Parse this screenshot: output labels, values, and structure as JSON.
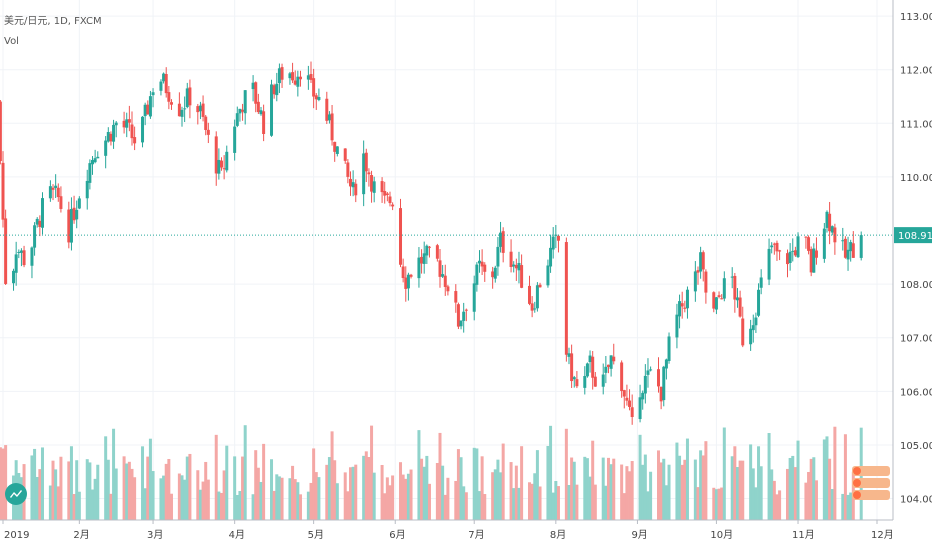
{
  "header": {
    "symbol_line": "美元/日元, 1D, FXCM",
    "indicator": "Vol"
  },
  "current_price": "108.914",
  "colors": {
    "up": "#26a69a",
    "down": "#ef5350",
    "up_vol": "#8fd3cb",
    "down_vol": "#f4a7a5",
    "grid": "#f0f3f7"
  },
  "chart_data": {
    "type": "candlestick",
    "title": "",
    "y_ticks": [
      "113.000",
      "112.000",
      "111.000",
      "110.000",
      "108.000",
      "107.000",
      "106.000",
      "105.000",
      "104.000"
    ],
    "ylim": [
      103.6,
      113.3
    ],
    "x_ticks": [
      {
        "label": "2019",
        "day": 3
      },
      {
        "label": "2月",
        "day": 32
      },
      {
        "label": "3月",
        "day": 60
      },
      {
        "label": "4月",
        "day": 91
      },
      {
        "label": "5月",
        "day": 121
      },
      {
        "label": "6月",
        "day": 152
      },
      {
        "label": "7月",
        "day": 182
      },
      {
        "label": "8月",
        "day": 213
      },
      {
        "label": "9月",
        "day": 244
      },
      {
        "label": "10月",
        "day": 274
      },
      {
        "label": "11月",
        "day": 305
      },
      {
        "label": "12月",
        "day": 335
      }
    ],
    "last_value": 108.914,
    "close_path": [
      {
        "day": 1,
        "close": 111.4
      },
      {
        "day": 4,
        "close": 108.1
      },
      {
        "day": 5,
        "close": 107.7
      },
      {
        "day": 8,
        "close": 108.7
      },
      {
        "day": 12,
        "close": 108.4
      },
      {
        "day": 16,
        "close": 109.1
      },
      {
        "day": 20,
        "close": 109.7
      },
      {
        "day": 24,
        "close": 109.6
      },
      {
        "day": 28,
        "close": 109.0
      },
      {
        "day": 33,
        "close": 109.9
      },
      {
        "day": 38,
        "close": 110.5
      },
      {
        "day": 42,
        "close": 110.7
      },
      {
        "day": 46,
        "close": 111.0
      },
      {
        "day": 50,
        "close": 110.9
      },
      {
        "day": 54,
        "close": 110.6
      },
      {
        "day": 58,
        "close": 111.3
      },
      {
        "day": 60,
        "close": 111.7
      },
      {
        "day": 62,
        "close": 111.9
      },
      {
        "day": 66,
        "close": 111.6
      },
      {
        "day": 70,
        "close": 111.3
      },
      {
        "day": 74,
        "close": 111.5
      },
      {
        "day": 78,
        "close": 111.2
      },
      {
        "day": 82,
        "close": 110.5
      },
      {
        "day": 86,
        "close": 110.0
      },
      {
        "day": 90,
        "close": 110.9
      },
      {
        "day": 94,
        "close": 111.4
      },
      {
        "day": 98,
        "close": 111.6
      },
      {
        "day": 102,
        "close": 111.0
      },
      {
        "day": 106,
        "close": 111.7
      },
      {
        "day": 110,
        "close": 112.0
      },
      {
        "day": 114,
        "close": 111.9
      },
      {
        "day": 117,
        "close": 112.1
      },
      {
        "day": 120,
        "close": 111.6
      },
      {
        "day": 124,
        "close": 111.4
      },
      {
        "day": 128,
        "close": 110.8
      },
      {
        "day": 132,
        "close": 110.2
      },
      {
        "day": 136,
        "close": 109.7
      },
      {
        "day": 140,
        "close": 110.4
      },
      {
        "day": 144,
        "close": 109.8
      },
      {
        "day": 148,
        "close": 109.5
      },
      {
        "day": 151,
        "close": 109.6
      },
      {
        "day": 153,
        "close": 108.6
      },
      {
        "day": 156,
        "close": 108.1
      },
      {
        "day": 160,
        "close": 108.4
      },
      {
        "day": 164,
        "close": 108.5
      },
      {
        "day": 168,
        "close": 108.4
      },
      {
        "day": 172,
        "close": 108.0
      },
      {
        "day": 176,
        "close": 107.3
      },
      {
        "day": 180,
        "close": 107.8
      },
      {
        "day": 184,
        "close": 108.3
      },
      {
        "day": 188,
        "close": 108.0
      },
      {
        "day": 192,
        "close": 108.8
      },
      {
        "day": 196,
        "close": 108.5
      },
      {
        "day": 200,
        "close": 108.1
      },
      {
        "day": 204,
        "close": 107.6
      },
      {
        "day": 208,
        "close": 108.2
      },
      {
        "day": 212,
        "close": 108.7
      },
      {
        "day": 214,
        "close": 108.8
      },
      {
        "day": 216,
        "close": 107.0
      },
      {
        "day": 218,
        "close": 106.5
      },
      {
        "day": 222,
        "close": 105.9
      },
      {
        "day": 226,
        "close": 106.5
      },
      {
        "day": 230,
        "close": 106.0
      },
      {
        "day": 234,
        "close": 106.6
      },
      {
        "day": 238,
        "close": 106.2
      },
      {
        "day": 242,
        "close": 105.3
      },
      {
        "day": 245,
        "close": 106.1
      },
      {
        "day": 249,
        "close": 106.3
      },
      {
        "day": 253,
        "close": 106.0
      },
      {
        "day": 257,
        "close": 107.1
      },
      {
        "day": 261,
        "close": 107.6
      },
      {
        "day": 265,
        "close": 108.0
      },
      {
        "day": 268,
        "close": 108.4
      },
      {
        "day": 272,
        "close": 107.3
      },
      {
        "day": 276,
        "close": 107.9
      },
      {
        "day": 280,
        "close": 108.1
      },
      {
        "day": 284,
        "close": 107.0
      },
      {
        "day": 288,
        "close": 107.4
      },
      {
        "day": 291,
        "close": 108.0
      },
      {
        "day": 295,
        "close": 108.7
      },
      {
        "day": 299,
        "close": 108.4
      },
      {
        "day": 303,
        "close": 108.6
      },
      {
        "day": 307,
        "close": 108.9
      },
      {
        "day": 310,
        "close": 108.3
      },
      {
        "day": 313,
        "close": 108.9
      },
      {
        "day": 316,
        "close": 109.3
      },
      {
        "day": 320,
        "close": 108.8
      },
      {
        "day": 323,
        "close": 108.5
      },
      {
        "day": 326,
        "close": 108.7
      },
      {
        "day": 329,
        "close": 108.914
      }
    ]
  }
}
